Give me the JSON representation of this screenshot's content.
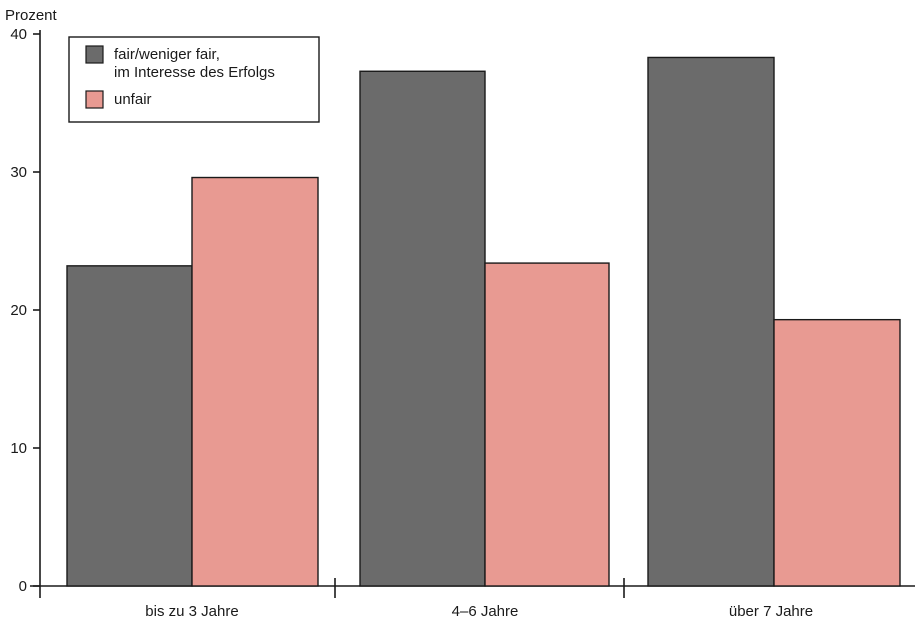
{
  "chart_data": {
    "type": "bar",
    "ylabel": "Prozent",
    "xlabel": "",
    "title": "",
    "ylim": [
      0,
      40
    ],
    "yticks": [
      0,
      10,
      20,
      30,
      40
    ],
    "categories": [
      "bis zu 3 Jahre",
      "4–6 Jahre",
      "über 7 Jahre"
    ],
    "series": [
      {
        "name": "fair/weniger fair,\nim Interesse des Erfolgs",
        "legend_lines": [
          "fair/weniger fair,",
          "im Interesse des Erfolgs"
        ],
        "color": "#6b6b6b",
        "values": [
          23.2,
          37.3,
          38.3
        ]
      },
      {
        "name": "unfair",
        "legend_lines": [
          "unfair"
        ],
        "color": "#e89a92",
        "values": [
          29.6,
          23.4,
          19.3
        ]
      }
    ],
    "grid": false,
    "legend_position": "top-left"
  }
}
